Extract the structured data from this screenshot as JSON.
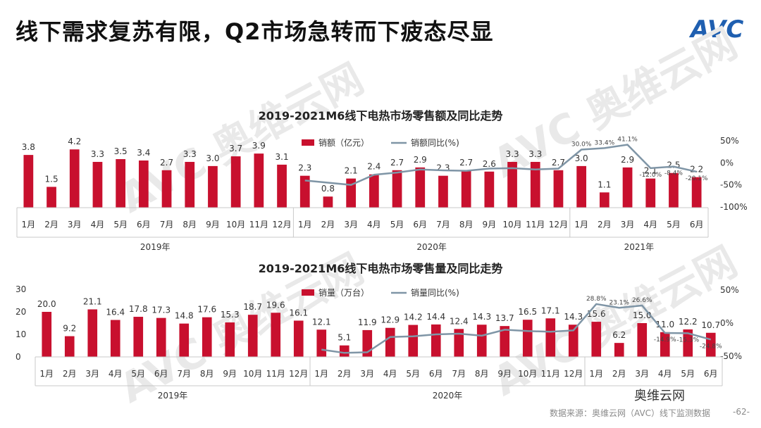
{
  "header": {
    "title": "线下需求复苏有限，Q2市场急转而下疲态尽显",
    "logo_text": "AVC"
  },
  "watermark": {
    "text": "AVC 奥维云网"
  },
  "footer": {
    "brand": "奥维云网",
    "source": "数据来源：奥维云网（AVC）线下监测数据",
    "page": "-62-"
  },
  "colors": {
    "bar": "#c8102e",
    "line": "#7f95a6"
  },
  "chart_data": [
    {
      "type": "bar",
      "title": "2019-2021M6线下电热市场零售额及同比走势",
      "legend": [
        "销额（亿元）",
        "销额同比(%)"
      ],
      "legend_position": "top",
      "categories": [
        "1月",
        "2月",
        "3月",
        "4月",
        "5月",
        "6月",
        "7月",
        "8月",
        "9月",
        "10月",
        "11月",
        "12月",
        "1月",
        "2月",
        "3月",
        "4月",
        "5月",
        "6月",
        "7月",
        "8月",
        "9月",
        "10月",
        "11月",
        "12月",
        "1月",
        "2月",
        "3月",
        "4月",
        "5月",
        "6月"
      ],
      "groups": [
        "2019年",
        "2020年",
        "2021年"
      ],
      "series": [
        {
          "name": "销额（亿元）",
          "type": "bar",
          "values": [
            3.8,
            1.5,
            4.2,
            3.3,
            3.5,
            3.4,
            2.7,
            3.3,
            3.0,
            3.7,
            3.9,
            3.1,
            2.3,
            0.8,
            2.1,
            2.4,
            2.7,
            2.9,
            2.3,
            2.7,
            2.6,
            3.3,
            3.3,
            2.7,
            3.0,
            1.1,
            2.9,
            2.1,
            2.5,
            2.2
          ]
        },
        {
          "name": "销额同比(%)",
          "type": "line",
          "values": [
            null,
            null,
            null,
            null,
            null,
            null,
            null,
            null,
            null,
            null,
            null,
            null,
            -40,
            -45,
            -50,
            -27,
            -22,
            -15,
            -17,
            -18,
            -13,
            -12,
            -15,
            -13,
            30,
            33.4,
            41.1,
            -12.0,
            -8.4,
            -20.1
          ],
          "labels": [
            "",
            "",
            "",
            "",
            "",
            "",
            "",
            "",
            "",
            "",
            "",
            "",
            "",
            "",
            "",
            "",
            "",
            "",
            "",
            "",
            "",
            "",
            "",
            "",
            "30.0%",
            "33.4%",
            "41.1%",
            "-12.0%",
            "-8.4%",
            "-20.1%"
          ]
        }
      ],
      "y2_ticks": [
        "50%",
        "0%",
        "-50%",
        "-100%"
      ],
      "y2lim": [
        -100,
        50
      ],
      "ylim": [
        0,
        4.6
      ]
    },
    {
      "type": "bar",
      "title": "2019-2021M6线下电热市场零售量及同比走势",
      "legend": [
        "销量（万台）",
        "销量同比(%)"
      ],
      "legend_position": "top",
      "categories": [
        "1月",
        "2月",
        "3月",
        "4月",
        "5月",
        "6月",
        "7月",
        "8月",
        "9月",
        "10月",
        "11月",
        "12月",
        "1月",
        "2月",
        "3月",
        "4月",
        "5月",
        "6月",
        "7月",
        "8月",
        "9月",
        "10月",
        "11月",
        "12月",
        "1月",
        "2月",
        "3月",
        "4月",
        "5月",
        "6月"
      ],
      "groups": [
        "2019年",
        "2020年"
      ],
      "series": [
        {
          "name": "销量（万台）",
          "type": "bar",
          "values": [
            20.0,
            9.2,
            21.1,
            16.4,
            17.8,
            17.3,
            14.8,
            17.6,
            15.3,
            18.7,
            19.6,
            16.1,
            12.1,
            5.1,
            11.9,
            12.9,
            14.2,
            14.4,
            12.4,
            14.3,
            13.7,
            16.5,
            17.1,
            14.3,
            15.6,
            6.2,
            15.0,
            11.0,
            12.2,
            10.7
          ]
        },
        {
          "name": "销量同比(%)",
          "type": "line",
          "values": [
            null,
            null,
            null,
            null,
            null,
            null,
            null,
            null,
            null,
            null,
            null,
            null,
            -40,
            -45,
            -44,
            -21,
            -20,
            -17,
            -16,
            -19,
            -10,
            -12,
            -13,
            -11,
            28.8,
            23.1,
            26.6,
            -14.9,
            -15.3,
            -24.8
          ],
          "labels": [
            "",
            "",
            "",
            "",
            "",
            "",
            "",
            "",
            "",
            "",
            "",
            "",
            "",
            "",
            "",
            "",
            "",
            "",
            "",
            "",
            "",
            "",
            "",
            "",
            "28.8%",
            "23.1%",
            "26.6%",
            "-14.9%",
            "-15.3%",
            "-24.8%"
          ]
        }
      ],
      "y_ticks": [
        "30",
        "20",
        "10",
        "0"
      ],
      "ylim": [
        0,
        30
      ],
      "y2_ticks": [
        "50%",
        "0%",
        "-50%"
      ],
      "y2lim": [
        -50,
        50
      ]
    }
  ]
}
